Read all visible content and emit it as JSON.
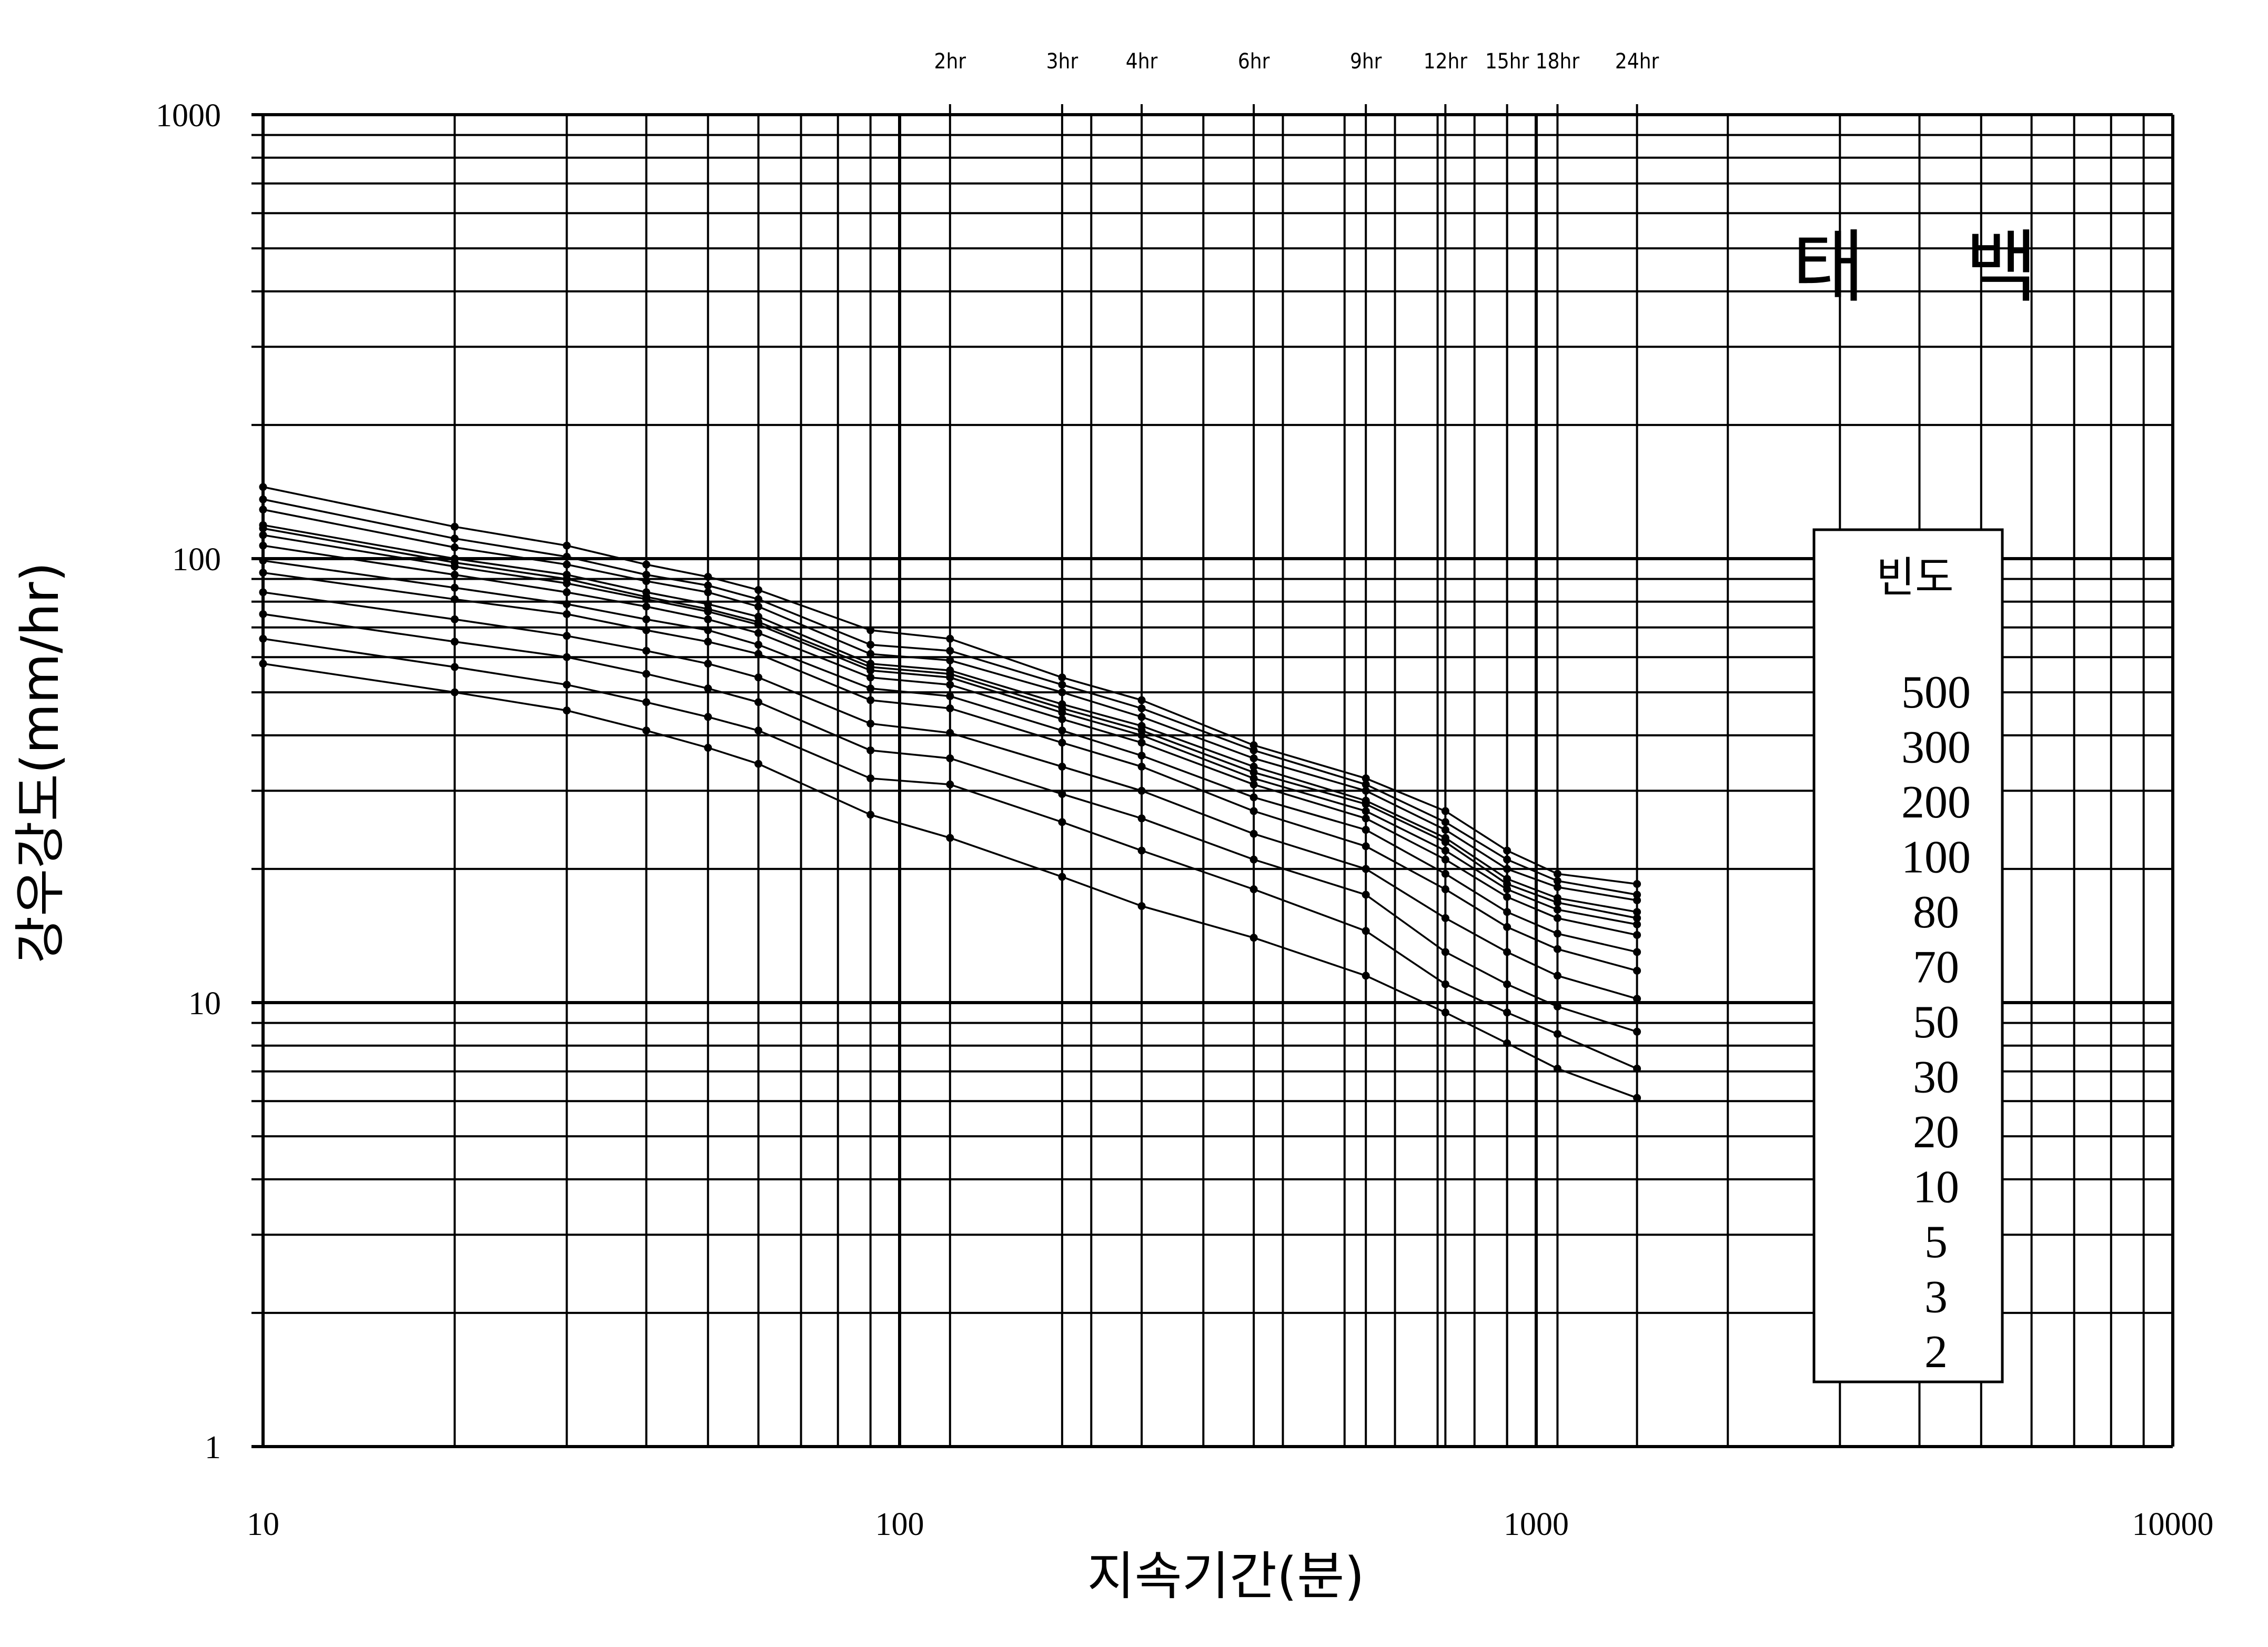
{
  "chart_data": {
    "type": "line",
    "title": "태    백",
    "xlabel": "지속기간(분)",
    "ylabel": "강우강도(mm/hr)",
    "x_scale": "log",
    "y_scale": "log",
    "xlim": [
      10,
      10000
    ],
    "ylim": [
      1,
      1000
    ],
    "x_tick_labels": [
      "10",
      "100",
      "1000",
      "10000"
    ],
    "y_tick_labels": [
      "1",
      "10",
      "100",
      "1000"
    ],
    "top_duration_labels": [
      {
        "label": "2hr",
        "minutes": 120
      },
      {
        "label": "3hr",
        "minutes": 180
      },
      {
        "label": "4hr",
        "minutes": 240
      },
      {
        "label": "6hr",
        "minutes": 360
      },
      {
        "label": "9hr",
        "minutes": 540
      },
      {
        "label": "12hr",
        "minutes": 720
      },
      {
        "label": "15hr",
        "minutes": 900
      },
      {
        "label": "18hr",
        "minutes": 1080
      },
      {
        "label": "24hr",
        "minutes": 1440
      }
    ],
    "grid": true,
    "legend": {
      "title": "빈도",
      "position": "right",
      "entries": [
        "500",
        "300",
        "200",
        "100",
        "80",
        "70",
        "50",
        "30",
        "20",
        "10",
        "5",
        "3",
        "2"
      ]
    },
    "x": [
      10,
      20,
      30,
      40,
      50,
      60,
      90,
      120,
      180,
      240,
      360,
      540,
      720,
      900,
      1080,
      1440
    ],
    "series": [
      {
        "name": "500",
        "values": [
          145,
          118,
          107,
          97,
          91,
          85,
          69,
          66,
          54,
          48,
          38,
          32,
          27,
          22,
          19.5,
          18.5
        ]
      },
      {
        "name": "300",
        "values": [
          136,
          111,
          101,
          92,
          87,
          81,
          64,
          62,
          52,
          46,
          37,
          31,
          25.5,
          21,
          18.8,
          17.5
        ]
      },
      {
        "name": "200",
        "values": [
          129,
          106,
          97,
          89,
          84,
          78,
          61,
          59,
          50,
          44,
          35.5,
          30,
          24.5,
          20,
          18.2,
          17
        ]
      },
      {
        "name": "100",
        "values": [
          119,
          100,
          92,
          84,
          79,
          74,
          58,
          56,
          47,
          42,
          34,
          28.5,
          23.5,
          19,
          17.2,
          16
        ]
      },
      {
        "name": "80",
        "values": [
          117,
          98,
          90,
          82,
          77,
          72,
          57,
          55,
          46,
          41,
          33,
          28,
          23,
          18.5,
          16.8,
          15.5
        ]
      },
      {
        "name": "70",
        "values": [
          113,
          96,
          88,
          81,
          76,
          71,
          56,
          54,
          45,
          40,
          32,
          27,
          22,
          18,
          16.2,
          15
        ]
      },
      {
        "name": "50",
        "values": [
          107,
          92,
          84,
          78,
          73,
          68,
          54,
          52,
          43.5,
          38.5,
          31,
          26,
          21,
          17.3,
          15.5,
          14.2
        ]
      },
      {
        "name": "30",
        "values": [
          99,
          86,
          79,
          73,
          69,
          64,
          51,
          49,
          41,
          36,
          29,
          24.5,
          19.5,
          16,
          14.3,
          13
        ]
      },
      {
        "name": "20",
        "values": [
          93,
          81,
          75,
          69,
          65,
          61,
          48,
          46,
          38.5,
          34,
          27,
          22.5,
          18,
          14.8,
          13.2,
          11.8
        ]
      },
      {
        "name": "10",
        "values": [
          84,
          73,
          67,
          62,
          58,
          54,
          42.5,
          40.5,
          34,
          30,
          24,
          20,
          15.5,
          13,
          11.5,
          10.2
        ]
      },
      {
        "name": "5",
        "values": [
          75,
          65,
          60,
          55,
          51,
          47.5,
          37,
          35.5,
          29.5,
          26,
          21,
          17.5,
          13,
          11,
          9.8,
          8.6
        ]
      },
      {
        "name": "3",
        "values": [
          66,
          57,
          52,
          47.5,
          44,
          41,
          32,
          31,
          25.5,
          22,
          18,
          14.5,
          11,
          9.5,
          8.5,
          7.1
        ]
      },
      {
        "name": "2",
        "values": [
          58,
          50,
          45.5,
          41,
          37.5,
          34.5,
          26.5,
          23.5,
          19.2,
          16.5,
          14,
          11.5,
          9.5,
          8.1,
          7.1,
          6.1
        ]
      }
    ]
  }
}
